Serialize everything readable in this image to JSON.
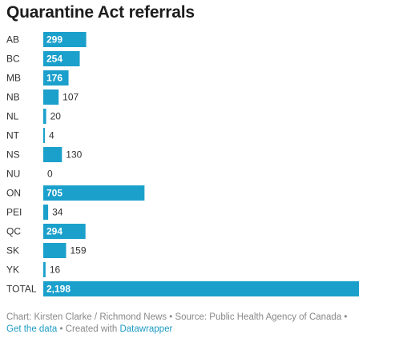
{
  "title": "Quarantine Act referrals",
  "colors": {
    "bar": "#1ba0cc",
    "label_text": "#333333",
    "inside_value": "#ffffff"
  },
  "chart_data": {
    "type": "bar",
    "orientation": "horizontal",
    "title": "Quarantine Act referrals",
    "categories": [
      "AB",
      "BC",
      "MB",
      "NB",
      "NL",
      "NT",
      "NS",
      "NU",
      "ON",
      "PEI",
      "QC",
      "SK",
      "YK",
      "TOTAL"
    ],
    "values": [
      299,
      254,
      176,
      107,
      20,
      4,
      130,
      0,
      705,
      34,
      294,
      159,
      16,
      2198
    ],
    "value_labels": [
      "299",
      "254",
      "176",
      "107",
      "20",
      "4",
      "130",
      "0",
      "705",
      "34",
      "294",
      "159",
      "16",
      "2,198"
    ],
    "xlim": [
      0,
      2198
    ],
    "grid": false,
    "legend": "none"
  },
  "footer": {
    "credit": "Chart: Kirsten Clarke / Richmond News • Source: Public Health Agency of Canada •",
    "get_data": "Get the data",
    "created_with": " • Created with ",
    "datawrapper": "Datawrapper"
  }
}
